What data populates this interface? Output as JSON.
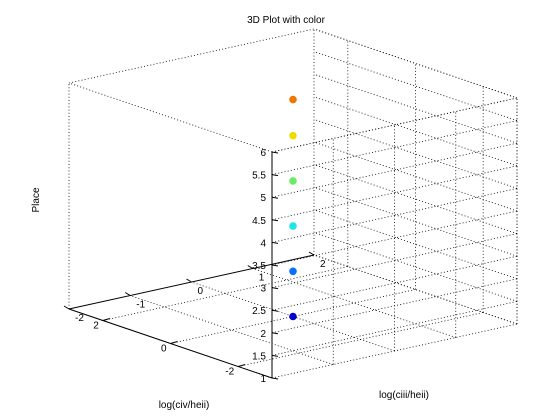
{
  "chart_data": {
    "type": "scatter",
    "dimensions": 3,
    "title": "3D Plot with color",
    "xlabel": "log(civ/heii)",
    "ylabel": "log(ciii/heii)",
    "zlabel": "Place",
    "xlim": [
      -3,
      3
    ],
    "ylim": [
      -2,
      2
    ],
    "zlim": [
      1,
      6
    ],
    "x_ticks": [
      -2,
      0,
      2
    ],
    "y_ticks": [
      -2,
      -1,
      0,
      1,
      2
    ],
    "z_ticks": [
      1,
      1.5,
      2,
      2.5,
      3,
      3.5,
      4,
      4.5,
      5,
      5.5,
      6
    ],
    "grid": true,
    "box": true,
    "points": [
      {
        "x": 0,
        "y": 0,
        "z": 1,
        "color": "#0000cc"
      },
      {
        "x": 0,
        "y": 0,
        "z": 2,
        "color": "#0a6fff"
      },
      {
        "x": 0,
        "y": 0,
        "z": 3,
        "color": "#1de6e6"
      },
      {
        "x": 0,
        "y": 0,
        "z": 4,
        "color": "#66ee66"
      },
      {
        "x": 0,
        "y": 0,
        "z": 5,
        "color": "#eedd00"
      },
      {
        "x": 0,
        "y": 0,
        "z": 5.8,
        "color": "#ee7700"
      }
    ]
  }
}
